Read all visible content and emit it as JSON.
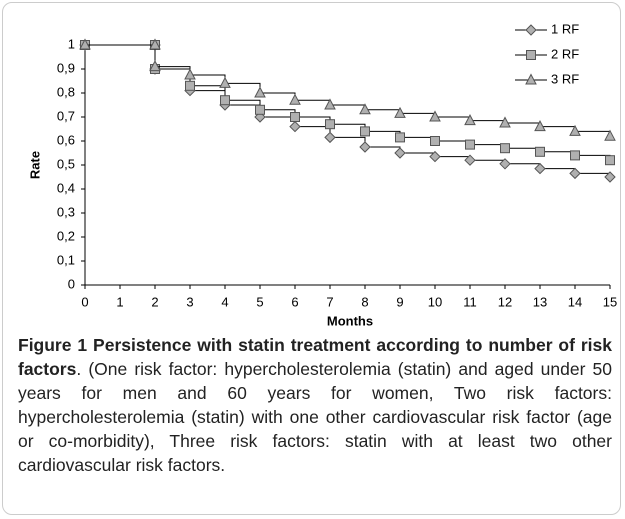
{
  "chart_data": {
    "type": "step-line",
    "x_label": "Months",
    "y_label": "Rate",
    "x": [
      0,
      2,
      2,
      3,
      4,
      5,
      6,
      7,
      8,
      9,
      10,
      11,
      12,
      13,
      14,
      15
    ],
    "series": [
      {
        "name": "1 RF",
        "color": "#000000",
        "marker": "diamond",
        "values": [
          1,
          1,
          0.9,
          0.81,
          0.75,
          0.7,
          0.66,
          0.615,
          0.575,
          0.55,
          0.535,
          0.52,
          0.505,
          0.485,
          0.465,
          0.45
        ]
      },
      {
        "name": "2 RF",
        "color": "#000000",
        "marker": "square",
        "values": [
          1,
          1,
          0.9,
          0.83,
          0.77,
          0.73,
          0.7,
          0.67,
          0.64,
          0.615,
          0.6,
          0.585,
          0.57,
          0.555,
          0.54,
          0.52
        ]
      },
      {
        "name": "3 RF",
        "color": "#000000",
        "marker": "triangle",
        "values": [
          1,
          1,
          0.91,
          0.875,
          0.84,
          0.8,
          0.77,
          0.75,
          0.73,
          0.715,
          0.7,
          0.685,
          0.675,
          0.66,
          0.64,
          0.62
        ]
      }
    ],
    "xlim": [
      0,
      15
    ],
    "xticks": [
      0,
      1,
      2,
      3,
      4,
      5,
      6,
      7,
      8,
      9,
      10,
      11,
      12,
      13,
      14,
      15
    ],
    "ylim": [
      0,
      1
    ],
    "yticks": [
      0,
      {
        "value": 0.1,
        "label": "0,1"
      },
      {
        "value": 0.2,
        "label": "0,2"
      },
      {
        "value": 0.3,
        "label": "0,3"
      },
      {
        "value": 0.4,
        "label": "0,4"
      },
      {
        "value": 0.5,
        "label": "0,5"
      },
      {
        "value": 0.6,
        "label": "0,6"
      },
      {
        "value": 0.7,
        "label": "0,7"
      },
      {
        "value": 0.8,
        "label": "0,8"
      },
      {
        "value": 0.9,
        "label": "0,9"
      },
      1
    ],
    "grid": false,
    "legend": "top-right",
    "marker_fill": "#b0b0b0"
  },
  "caption": {
    "label": "Figure 1",
    "title": "Persistence with statin treatment according to number of risk factors",
    "text": ". (One risk factor: hypercholesterolemia (statin) and aged under 50 years for men and 60 years for women, Two risk factors: hypercholesterolemia (statin) with one other cardiovascular risk factor (age or co-morbidity), Three risk factors: statin with at least two other cardiovascular risk factors."
  }
}
